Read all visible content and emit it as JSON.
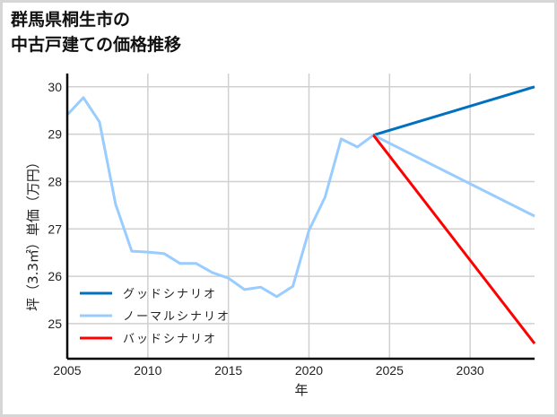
{
  "title": {
    "line1": "群馬県桐生市の",
    "line2": "中古戸建ての価格推移"
  },
  "chart_data": {
    "type": "line",
    "title": "群馬県桐生市の中古戸建ての価格推移",
    "xlabel": "年",
    "ylabel": "坪（3.3㎡）単価（万円）",
    "xlim": [
      2005,
      2034
    ],
    "ylim": [
      24.26,
      30.28
    ],
    "x_ticks": [
      2005,
      2010,
      2015,
      2020,
      2025,
      2030
    ],
    "y_ticks": [
      25,
      26,
      27,
      28,
      29,
      30
    ],
    "grid": true,
    "legend_position": "lower left",
    "series": [
      {
        "name": "ノーマルシナリオ",
        "role": "history",
        "color": "#99ccff",
        "x": [
          2005,
          2006,
          2007,
          2008,
          2009,
          2010,
          2011,
          2012,
          2013,
          2014,
          2015,
          2016,
          2017,
          2018,
          2019,
          2020,
          2021,
          2022,
          2023,
          2024
        ],
        "y": [
          29.41,
          29.77,
          29.26,
          27.52,
          26.53,
          26.51,
          26.48,
          26.27,
          26.27,
          26.08,
          25.96,
          25.72,
          25.77,
          25.57,
          25.79,
          26.97,
          27.67,
          28.9,
          28.73,
          28.98
        ]
      },
      {
        "name": "グッドシナリオ",
        "role": "projection",
        "color": "#0070c0",
        "x": [
          2024,
          2034
        ],
        "y": [
          28.98,
          30.0
        ]
      },
      {
        "name": "ノーマルシナリオ",
        "role": "projection",
        "color": "#99ccff",
        "x": [
          2024,
          2034
        ],
        "y": [
          28.98,
          27.27
        ]
      },
      {
        "name": "バッドシナリオ",
        "role": "projection",
        "color": "#ff0000",
        "x": [
          2024,
          2034
        ],
        "y": [
          28.98,
          24.58
        ]
      }
    ],
    "legend": [
      {
        "label": "グッドシナリオ",
        "color": "#0070c0"
      },
      {
        "label": "ノーマルシナリオ",
        "color": "#99ccff"
      },
      {
        "label": "バッドシナリオ",
        "color": "#ff0000"
      }
    ]
  }
}
